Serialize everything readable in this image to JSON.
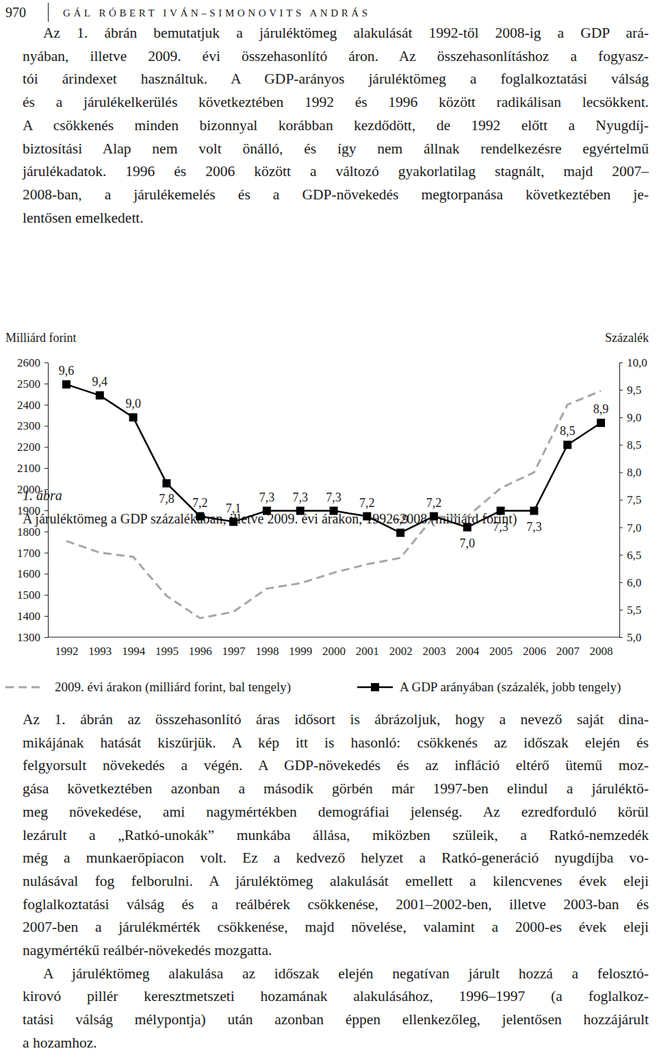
{
  "header": {
    "page_number": "970",
    "authors": "GÁL RÓBERT IVÁN–SIMONOVITS ANDRÁS"
  },
  "paragraphs_before": [
    {
      "lines": [
        "Az 1. ábrán bemutatjuk a járuléktömeg alakulását 1992-től 2008-ig a GDP ará-",
        "nyában, illetve 2009. évi összehasonlító áron. Az összehasonlításhoz a fogyasz-",
        "tói árindexet használtuk. A GDP-arányos járuléktömeg a foglalkoztatási válság",
        "és a járulékelkerülés következtében 1992 és 1996 között radikálisan lecsökkent.",
        "A csökkenés minden bizonnyal korábban kezdődött, de 1992 előtt a Nyugdíj-",
        "biztosítási Alap nem volt önálló, és így nem állnak rendelkezésre egyértelmű",
        "járulékadatok. 1996 és 2006 között a változó gyakorlatilag stagnált, majd 2007–",
        "2008-ban, a járulékemelés és a GDP-növekedés megtorpanása következtében je-",
        "lentősen emelkedett."
      ]
    }
  ],
  "figure": {
    "label": "1. ábra"
  },
  "chart_data": {
    "type": "line",
    "title": "A járuléktömeg a GDP százalékában, illetve 2009. évi árakon, 1992–2008 (milliárd forint)",
    "ylabel": "Milliárd forint",
    "y2label": "Százalék",
    "categories": [
      "1992",
      "1993",
      "1994",
      "1995",
      "1996",
      "1997",
      "1998",
      "1999",
      "2000",
      "2001",
      "2002",
      "2003",
      "2004",
      "2005",
      "2006",
      "2007",
      "2008"
    ],
    "series": [
      {
        "name": "2009. évi árakon (milliárd forint, bal tengely)",
        "color": "#a6a6a6",
        "line_style": "dashed",
        "marker": "none",
        "values": [
          1755,
          1700,
          1680,
          1495,
          1390,
          1420,
          1530,
          1555,
          1605,
          1645,
          1675,
          1870,
          1870,
          2005,
          2080,
          2400,
          2465
        ]
      },
      {
        "name": "A GDP arányában (százalék, jobb tengely)",
        "color": "#000000",
        "line_style": "solid",
        "marker": "square",
        "axis": "y2",
        "values": [
          9.6,
          9.4,
          9.0,
          7.8,
          7.2,
          7.1,
          7.3,
          7.3,
          7.3,
          7.2,
          6.9,
          7.2,
          7.0,
          7.3,
          7.3,
          8.5,
          8.9
        ],
        "value_labels": [
          "9,6",
          "9,4",
          "9,0",
          "7,8",
          "7,2",
          "7,1",
          "7,3",
          "7,3",
          "7,3",
          "7,2",
          "6,9",
          "7,2",
          "7,0",
          "7,3",
          "7,3",
          "8,5",
          "8,9"
        ]
      }
    ],
    "ylim": [
      1300,
      2600
    ],
    "yticks": [
      1300,
      1400,
      1500,
      1600,
      1700,
      1800,
      1900,
      2000,
      2100,
      2200,
      2300,
      2400,
      2500,
      2600
    ],
    "y2lim": [
      5,
      10
    ],
    "y2ticks": [
      {
        "value": 5,
        "label": "5,0"
      },
      {
        "value": 5.5,
        "label": "5,5"
      },
      {
        "value": 6,
        "label": "6,0"
      },
      {
        "value": 6.5,
        "label": "6,5"
      },
      {
        "value": 7,
        "label": "7,0"
      },
      {
        "value": 7.5,
        "label": "7,5"
      },
      {
        "value": 8,
        "label": "8,0"
      },
      {
        "value": 8.5,
        "label": "8,5"
      },
      {
        "value": 9,
        "label": "9,0"
      },
      {
        "value": 9.5,
        "label": "9,5"
      },
      {
        "value": 10,
        "label": "10,0"
      }
    ],
    "grid": false,
    "legend": "bottom",
    "data_labels": true
  },
  "paragraphs_after": [
    {
      "lines": [
        "Az 1. ábrán az összehasonlító áras idősort is ábrázoljuk, hogy a nevező saját dina-",
        "mikájának hatását kiszűrjük. A kép itt is hasonló: csökkenés az időszak elején és",
        "felgyorsult növekedés a végén. A GDP-növekedés és az infláció eltérő ütemű moz-",
        "gása következtében azonban a második görbén már 1997-ben elindul a járuléktö-",
        "meg növekedése, ami nagymértékben demográfiai jelenség. Az ezredforduló körül",
        "lezárult a „Ratkó-unokák” munkába állása, miközben szüleik, a Ratkó-nemzedék",
        "még a munkaerőpiacon volt. Ez a kedvező helyzet a Ratkó-generáció nyugdíjba vo-",
        "nulásával fog felborulni. A járuléktömeg alakulását emellett a kilencvenes évek eleji",
        "foglalkoztatási válság és a reálbérek csökkenése, 2001–2002-ben, illetve 2003-ban és",
        "2007-ben a járulékmérték csökkenése, majd növelése, valamint a 2000-es évek eleji",
        "nagymértékű reálbér-növekedés mozgatta."
      ]
    },
    {
      "lines": [
        "A járuléktömeg alakulása az időszak elején negatívan járult hozzá a felosztó-",
        "kirovó pillér keresztmetszeti hozamának alakulásához, 1996–1997 (a foglalkoz-",
        "tatási válság mélypontja) után azonban éppen ellenkezőleg, jelentősen hozzájárult",
        "a hozamhoz."
      ]
    }
  ]
}
